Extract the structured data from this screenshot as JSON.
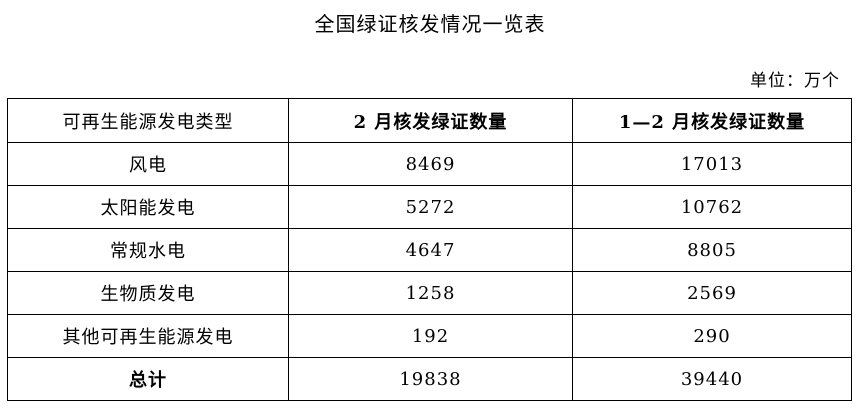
{
  "title": "全国绿证核发情况一览表",
  "unit": "单位：万个",
  "headers": [
    "可再生能源发电类型",
    "2 月核发绿证数量",
    "1—2 月核发绿证数量"
  ],
  "rows": [
    [
      "风电",
      "8469",
      "17013"
    ],
    [
      "太阳能发电",
      "5272",
      "10762"
    ],
    [
      "常规水电",
      "4647",
      "8805"
    ],
    [
      "生物质发电",
      "1258",
      "2569"
    ],
    [
      "其他可再生能源发电",
      "192",
      "290"
    ]
  ],
  "total": [
    "总计",
    "19838",
    "39440"
  ]
}
